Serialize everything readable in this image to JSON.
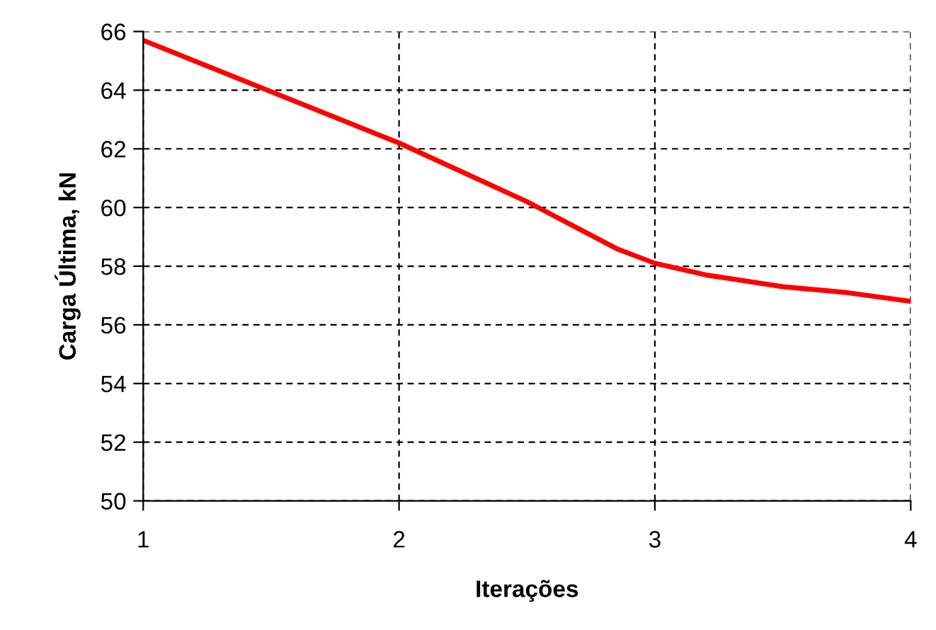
{
  "chart_data": {
    "type": "line",
    "xlabel": "Iterações",
    "ylabel": "Carga Última, kN",
    "x": [
      1,
      2,
      2.5,
      2.85,
      3,
      3.2,
      3.5,
      3.75,
      4
    ],
    "series": [
      {
        "color": "#ff0000",
        "values": [
          65.7,
          62.2,
          60.2,
          58.6,
          58.1,
          57.7,
          57.3,
          57.1,
          56.8
        ]
      }
    ],
    "xlim": [
      1,
      4
    ],
    "xticks": [
      1,
      2,
      3,
      4
    ],
    "ylim": [
      50,
      66
    ],
    "yticks": [
      50,
      52,
      54,
      56,
      58,
      60,
      62,
      64,
      66
    ],
    "grid": true,
    "line_style": "solid",
    "marker": "none"
  }
}
